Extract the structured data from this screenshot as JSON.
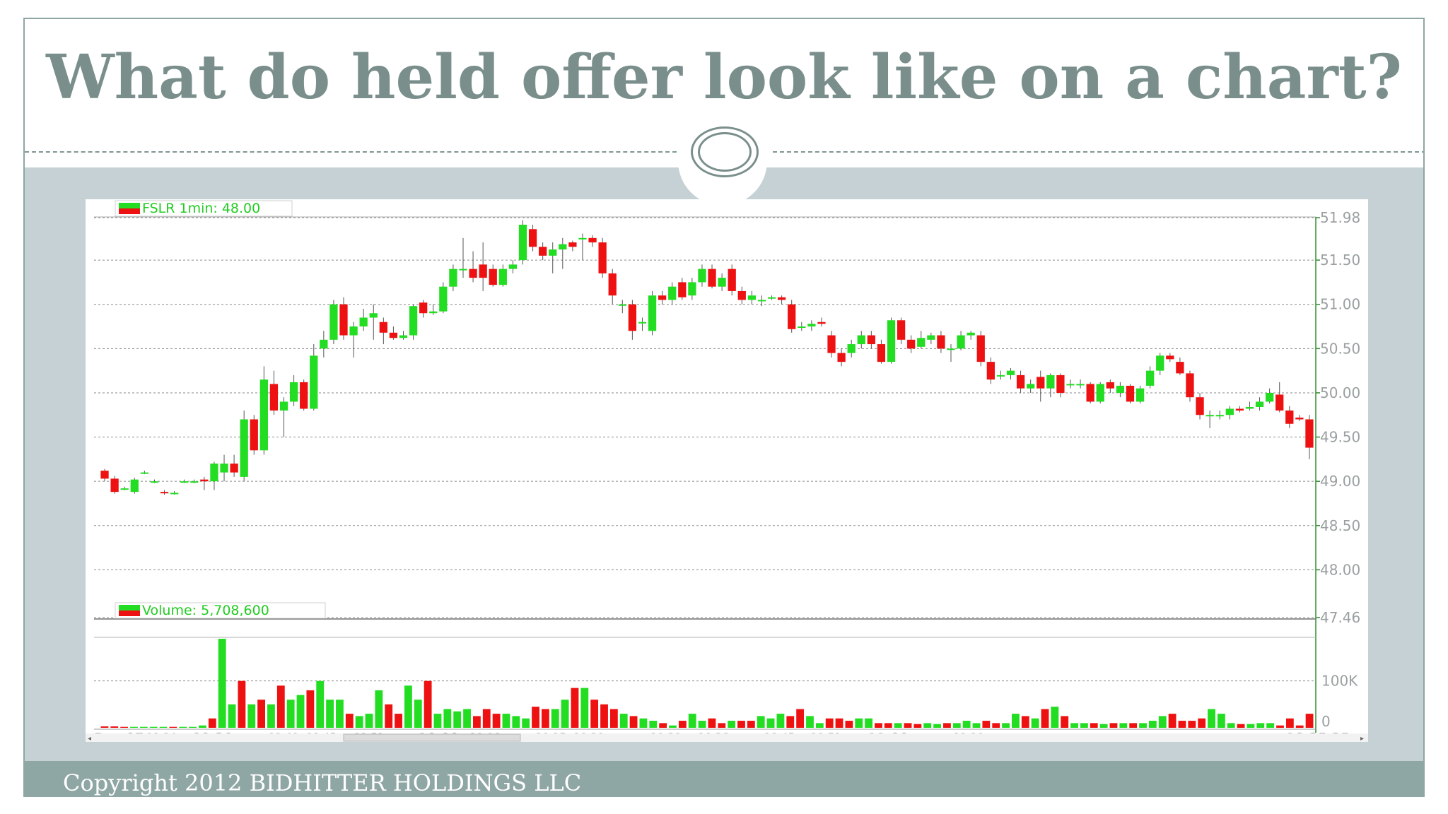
{
  "slide": {
    "title": "What do held offer look like on a chart?",
    "copyright": "Copyright 2012 BIDHITTER HOLDINGS LLC"
  },
  "chart_data": [
    {
      "type": "candlestick",
      "label": "FSLR 1min: 48.00",
      "y_ticks": [
        "51.98",
        "51.50",
        "51.00",
        "50.50",
        "50.00",
        "49.50",
        "49.00",
        "48.50",
        "48.00",
        "47.46"
      ],
      "ylim": [
        47.46,
        51.98
      ],
      "grid": true,
      "colors": {
        "up": "#22dd22",
        "down": "#ee1111"
      },
      "candles": [
        [
          49.12,
          49.03,
          49.14,
          49.0
        ],
        [
          49.03,
          48.88,
          49.06,
          48.86
        ],
        [
          48.92,
          48.92,
          48.94,
          48.9
        ],
        [
          48.88,
          49.02,
          49.04,
          48.86
        ],
        [
          49.1,
          49.1,
          49.12,
          49.08
        ],
        [
          49.0,
          49.0,
          49.02,
          48.98
        ],
        [
          48.88,
          48.87,
          48.9,
          48.85
        ],
        [
          48.87,
          48.87,
          48.89,
          48.85
        ],
        [
          49.0,
          49.0,
          49.02,
          48.98
        ],
        [
          49.0,
          49.0,
          49.02,
          48.98
        ],
        [
          49.02,
          49.0,
          49.05,
          48.9
        ],
        [
          49.0,
          49.2,
          49.22,
          48.9
        ],
        [
          49.1,
          49.2,
          49.3,
          49.0
        ],
        [
          49.2,
          49.1,
          49.3,
          49.05
        ],
        [
          49.05,
          49.7,
          49.8,
          49.0
        ],
        [
          49.7,
          49.35,
          49.75,
          49.3
        ],
        [
          49.35,
          50.15,
          50.3,
          49.3
        ],
        [
          50.1,
          49.8,
          50.25,
          49.75
        ],
        [
          49.8,
          49.9,
          49.95,
          49.5
        ],
        [
          49.9,
          50.12,
          50.2,
          49.85
        ],
        [
          50.12,
          49.82,
          50.15,
          49.8
        ],
        [
          49.82,
          50.42,
          50.55,
          49.8
        ],
        [
          50.5,
          50.6,
          50.7,
          50.4
        ],
        [
          50.6,
          51.0,
          51.05,
          50.55
        ],
        [
          51.0,
          50.65,
          51.08,
          50.6
        ],
        [
          50.65,
          50.75,
          50.8,
          50.4
        ],
        [
          50.75,
          50.85,
          50.95,
          50.7
        ],
        [
          50.85,
          50.9,
          51.0,
          50.6
        ],
        [
          50.8,
          50.68,
          50.85,
          50.55
        ],
        [
          50.68,
          50.62,
          50.75,
          50.6
        ],
        [
          50.62,
          50.65,
          50.7,
          50.6
        ],
        [
          50.65,
          50.98,
          51.0,
          50.6
        ],
        [
          51.02,
          50.9,
          51.05,
          50.85
        ],
        [
          50.9,
          50.92,
          51.0,
          50.88
        ],
        [
          50.92,
          51.2,
          51.25,
          50.9
        ],
        [
          51.2,
          51.4,
          51.45,
          51.15
        ],
        [
          51.4,
          51.4,
          51.75,
          51.3
        ],
        [
          51.4,
          51.3,
          51.6,
          51.25
        ],
        [
          51.45,
          51.3,
          51.7,
          51.15
        ],
        [
          51.4,
          51.22,
          51.45,
          51.2
        ],
        [
          51.22,
          51.4,
          51.45,
          51.2
        ],
        [
          51.4,
          51.45,
          51.5,
          51.35
        ],
        [
          51.5,
          51.9,
          51.95,
          51.45
        ],
        [
          51.85,
          51.65,
          51.9,
          51.6
        ],
        [
          51.65,
          51.55,
          51.7,
          51.5
        ],
        [
          51.55,
          51.62,
          51.7,
          51.35
        ],
        [
          51.62,
          51.68,
          51.75,
          51.4
        ],
        [
          51.7,
          51.65,
          51.72,
          51.6
        ],
        [
          51.75,
          51.75,
          51.8,
          51.5
        ],
        [
          51.75,
          51.7,
          51.78,
          51.65
        ],
        [
          51.7,
          51.35,
          51.75,
          51.3
        ],
        [
          51.35,
          51.1,
          51.4,
          51.0
        ],
        [
          51.0,
          51.0,
          51.05,
          50.9
        ],
        [
          51.0,
          50.7,
          51.05,
          50.6
        ],
        [
          50.8,
          50.8,
          50.85,
          50.7
        ],
        [
          50.7,
          51.1,
          51.15,
          50.65
        ],
        [
          51.1,
          51.05,
          51.15,
          51.0
        ],
        [
          51.05,
          51.2,
          51.25,
          51.0
        ],
        [
          51.25,
          51.08,
          51.3,
          51.05
        ],
        [
          51.1,
          51.25,
          51.3,
          51.05
        ],
        [
          51.25,
          51.4,
          51.45,
          51.2
        ],
        [
          51.4,
          51.2,
          51.45,
          51.18
        ],
        [
          51.2,
          51.3,
          51.35,
          51.15
        ],
        [
          51.4,
          51.15,
          51.45,
          51.1
        ],
        [
          51.15,
          51.05,
          51.2,
          51.0
        ],
        [
          51.05,
          51.1,
          51.15,
          51.0
        ],
        [
          51.05,
          51.05,
          51.1,
          50.98
        ],
        [
          51.08,
          51.08,
          51.1,
          51.05
        ],
        [
          51.08,
          51.05,
          51.1,
          51.0
        ],
        [
          51.0,
          50.72,
          51.05,
          50.68
        ],
        [
          50.75,
          50.75,
          50.8,
          50.7
        ],
        [
          50.75,
          50.78,
          50.82,
          50.7
        ],
        [
          50.8,
          50.78,
          50.85,
          50.75
        ],
        [
          50.65,
          50.45,
          50.7,
          50.4
        ],
        [
          50.45,
          50.35,
          50.5,
          50.3
        ],
        [
          50.45,
          50.55,
          50.6,
          50.4
        ],
        [
          50.55,
          50.65,
          50.7,
          50.5
        ],
        [
          50.65,
          50.55,
          50.7,
          50.5
        ],
        [
          50.55,
          50.35,
          50.6,
          50.33
        ],
        [
          50.35,
          50.82,
          50.85,
          50.33
        ],
        [
          50.82,
          50.6,
          50.85,
          50.55
        ],
        [
          50.6,
          50.5,
          50.65,
          50.45
        ],
        [
          50.52,
          50.62,
          50.7,
          50.5
        ],
        [
          50.6,
          50.65,
          50.68,
          50.55
        ],
        [
          50.65,
          50.5,
          50.7,
          50.45
        ],
        [
          50.5,
          50.5,
          50.55,
          50.35
        ],
        [
          50.5,
          50.65,
          50.7,
          50.48
        ],
        [
          50.65,
          50.68,
          50.7,
          50.6
        ],
        [
          50.65,
          50.35,
          50.7,
          50.3
        ],
        [
          50.35,
          50.15,
          50.4,
          50.1
        ],
        [
          50.2,
          50.2,
          50.25,
          50.15
        ],
        [
          50.2,
          50.25,
          50.28,
          50.15
        ],
        [
          50.2,
          50.05,
          50.25,
          50.0
        ],
        [
          50.05,
          50.1,
          50.15,
          50.0
        ],
        [
          50.18,
          50.05,
          50.25,
          49.9
        ],
        [
          50.05,
          50.2,
          50.22,
          49.95
        ],
        [
          50.2,
          50.0,
          50.22,
          49.95
        ],
        [
          50.1,
          50.1,
          50.15,
          50.05
        ],
        [
          50.1,
          50.1,
          50.15,
          50.05
        ],
        [
          50.1,
          49.9,
          50.12,
          49.88
        ],
        [
          49.9,
          50.1,
          50.12,
          49.88
        ],
        [
          50.12,
          50.05,
          50.15,
          50.0
        ],
        [
          50.0,
          50.08,
          50.12,
          49.95
        ],
        [
          50.08,
          49.9,
          50.1,
          49.88
        ],
        [
          49.9,
          50.05,
          50.08,
          49.88
        ],
        [
          50.08,
          50.25,
          50.3,
          50.05
        ],
        [
          50.25,
          50.42,
          50.45,
          50.2
        ],
        [
          50.42,
          50.38,
          50.45,
          50.35
        ],
        [
          50.35,
          50.22,
          50.4,
          50.2
        ],
        [
          50.22,
          49.95,
          50.25,
          49.9
        ],
        [
          49.95,
          49.75,
          50.0,
          49.7
        ],
        [
          49.75,
          49.75,
          49.8,
          49.6
        ],
        [
          49.75,
          49.75,
          49.8,
          49.7
        ],
        [
          49.75,
          49.82,
          49.85,
          49.7
        ],
        [
          49.82,
          49.8,
          49.85,
          49.78
        ],
        [
          49.82,
          49.84,
          49.9,
          49.8
        ],
        [
          49.84,
          49.9,
          49.95,
          49.8
        ],
        [
          49.9,
          50.0,
          50.05,
          49.88
        ],
        [
          49.98,
          49.8,
          50.12,
          49.78
        ],
        [
          49.8,
          49.65,
          49.85,
          49.6
        ],
        [
          49.72,
          49.7,
          49.75,
          49.68
        ],
        [
          49.7,
          49.38,
          49.75,
          49.25
        ]
      ]
    },
    {
      "type": "bar",
      "label": "Volume: 5,708,600",
      "y_ticks": [
        "100K",
        "0"
      ],
      "ylim": [
        0,
        190000
      ],
      "grid": true,
      "x_ticks": [
        "Dec 07",
        "09:24",
        "09:30",
        "09:40",
        "09:45",
        "09:51",
        "10:00",
        "10:06",
        "10:15",
        "10:20",
        "10:30",
        "10:36",
        "10:45",
        "10:51",
        "11:00",
        "11:10",
        "18:25:25"
      ],
      "volumes": [
        3000,
        3000,
        2000,
        2000,
        2000,
        2000,
        2000,
        2000,
        2000,
        2000,
        5000,
        20000,
        190000,
        50000,
        100000,
        50000,
        60000,
        50000,
        90000,
        60000,
        70000,
        80000,
        100000,
        60000,
        60000,
        30000,
        25000,
        30000,
        80000,
        50000,
        30000,
        90000,
        60000,
        100000,
        30000,
        40000,
        35000,
        40000,
        25000,
        40000,
        30000,
        30000,
        25000,
        20000,
        45000,
        40000,
        40000,
        60000,
        85000,
        85000,
        60000,
        50000,
        40000,
        30000,
        25000,
        20000,
        15000,
        10000,
        5000,
        15000,
        30000,
        15000,
        20000,
        10000,
        15000,
        15000,
        15000,
        25000,
        20000,
        30000,
        25000,
        40000,
        25000,
        10000,
        20000,
        20000,
        15000,
        20000,
        20000,
        10000,
        10000,
        10000,
        10000,
        8000,
        10000,
        8000,
        10000,
        10000,
        15000,
        10000,
        15000,
        10000,
        10000,
        30000,
        25000,
        20000,
        40000,
        45000,
        25000,
        10000,
        10000,
        10000,
        8000,
        10000,
        10000,
        10000,
        10000,
        15000,
        25000,
        30000,
        15000,
        15000,
        20000,
        40000,
        30000,
        10000,
        8000,
        8000,
        10000,
        10000,
        5000,
        20000,
        5000,
        30000
      ]
    }
  ]
}
